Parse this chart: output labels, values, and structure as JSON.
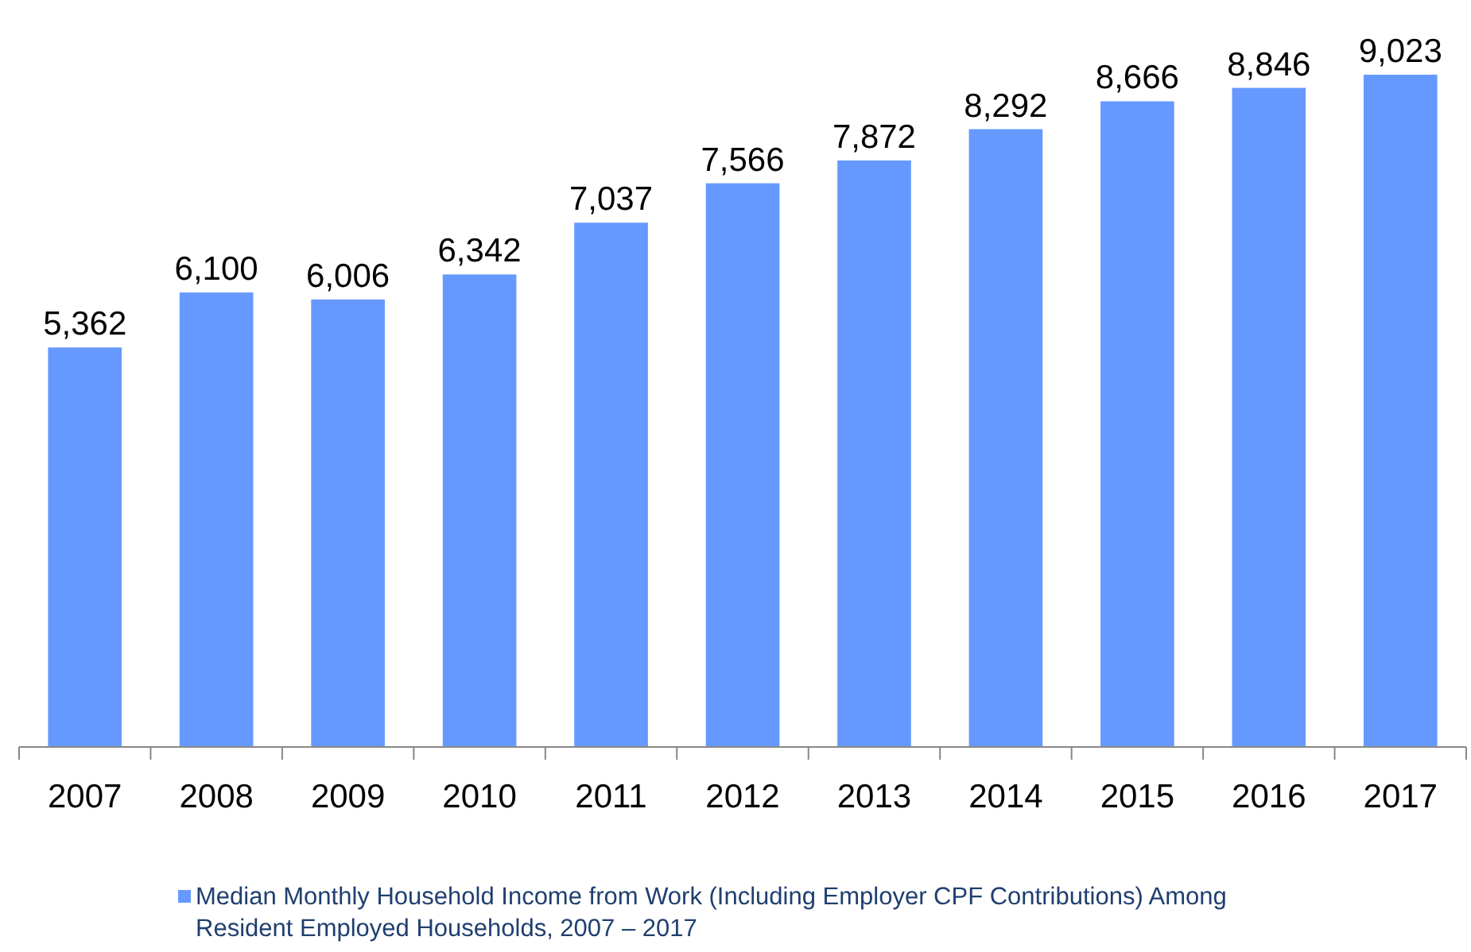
{
  "chart_data": {
    "type": "bar",
    "categories": [
      "2007",
      "2008",
      "2009",
      "2010",
      "2011",
      "2012",
      "2013",
      "2014",
      "2015",
      "2016",
      "2017"
    ],
    "series": [
      {
        "name": "Median Monthly Household Income from Work (Including Employer CPF Contributions) Among Resident Employed Households, 2007 – 2017",
        "color": "#6699ff",
        "values": [
          5362,
          6100,
          6006,
          6342,
          7037,
          7566,
          7872,
          8292,
          8666,
          8846,
          9023
        ],
        "value_labels": [
          "5,362",
          "6,100",
          "6,006",
          "6,342",
          "7,037",
          "7,566",
          "7,872",
          "8,292",
          "8,666",
          "8,846",
          "9,023"
        ]
      }
    ],
    "legend": "bottom"
  }
}
